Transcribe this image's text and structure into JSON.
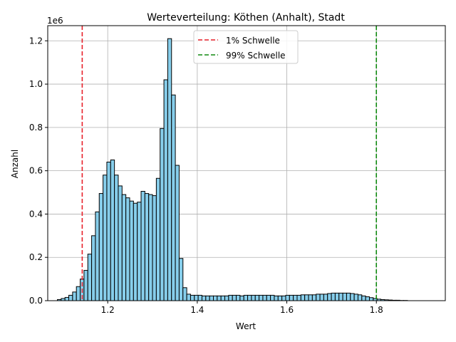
{
  "chart_data": {
    "type": "bar",
    "title": "Werteverteilung: Köthen (Anhalt), Stadt",
    "xlabel": "Wert",
    "ylabel": "Anzahl",
    "y_multiplier_label": "1e6",
    "xlim": [
      1.066,
      1.954
    ],
    "ylim": [
      0,
      1.27
    ],
    "grid": true,
    "x_ticks": [
      1.2,
      1.4,
      1.6,
      1.8
    ],
    "x_tick_labels": [
      "1.2",
      "1.4",
      "1.6",
      "1.8"
    ],
    "y_ticks": [
      0,
      0.2,
      0.4,
      0.6,
      0.8,
      1.0,
      1.2
    ],
    "y_tick_labels": [
      "0.0",
      "0.2",
      "0.4",
      "0.6",
      "0.8",
      "1.0",
      "1.2"
    ],
    "bin_width": 0.0085,
    "bins_start": 1.0875,
    "bar_color": "#87ceeb",
    "values": [
      0.005,
      0.01,
      0.015,
      0.025,
      0.04,
      0.065,
      0.1,
      0.14,
      0.215,
      0.3,
      0.41,
      0.495,
      0.58,
      0.64,
      0.65,
      0.58,
      0.53,
      0.49,
      0.475,
      0.46,
      0.45,
      0.455,
      0.505,
      0.495,
      0.49,
      0.485,
      0.565,
      0.795,
      1.02,
      1.21,
      0.95,
      0.625,
      0.195,
      0.06,
      0.03,
      0.025,
      0.025,
      0.025,
      0.022,
      0.022,
      0.022,
      0.022,
      0.022,
      0.022,
      0.022,
      0.025,
      0.025,
      0.025,
      0.022,
      0.025,
      0.025,
      0.025,
      0.025,
      0.025,
      0.025,
      0.025,
      0.025,
      0.022,
      0.022,
      0.022,
      0.025,
      0.025,
      0.025,
      0.025,
      0.027,
      0.027,
      0.027,
      0.027,
      0.03,
      0.03,
      0.03,
      0.033,
      0.035,
      0.035,
      0.035,
      0.035,
      0.035,
      0.033,
      0.03,
      0.027,
      0.022,
      0.018,
      0.014,
      0.01,
      0.007,
      0.005,
      0.004,
      0.003,
      0.002,
      0.002,
      0.001,
      0.001
    ],
    "thresholds": [
      {
        "name": "1% Schwelle",
        "x": 1.143,
        "color": "#e8202a"
      },
      {
        "name": "99% Schwelle",
        "x": 1.8,
        "color": "#108a10"
      }
    ],
    "legend_position": "upper center"
  }
}
